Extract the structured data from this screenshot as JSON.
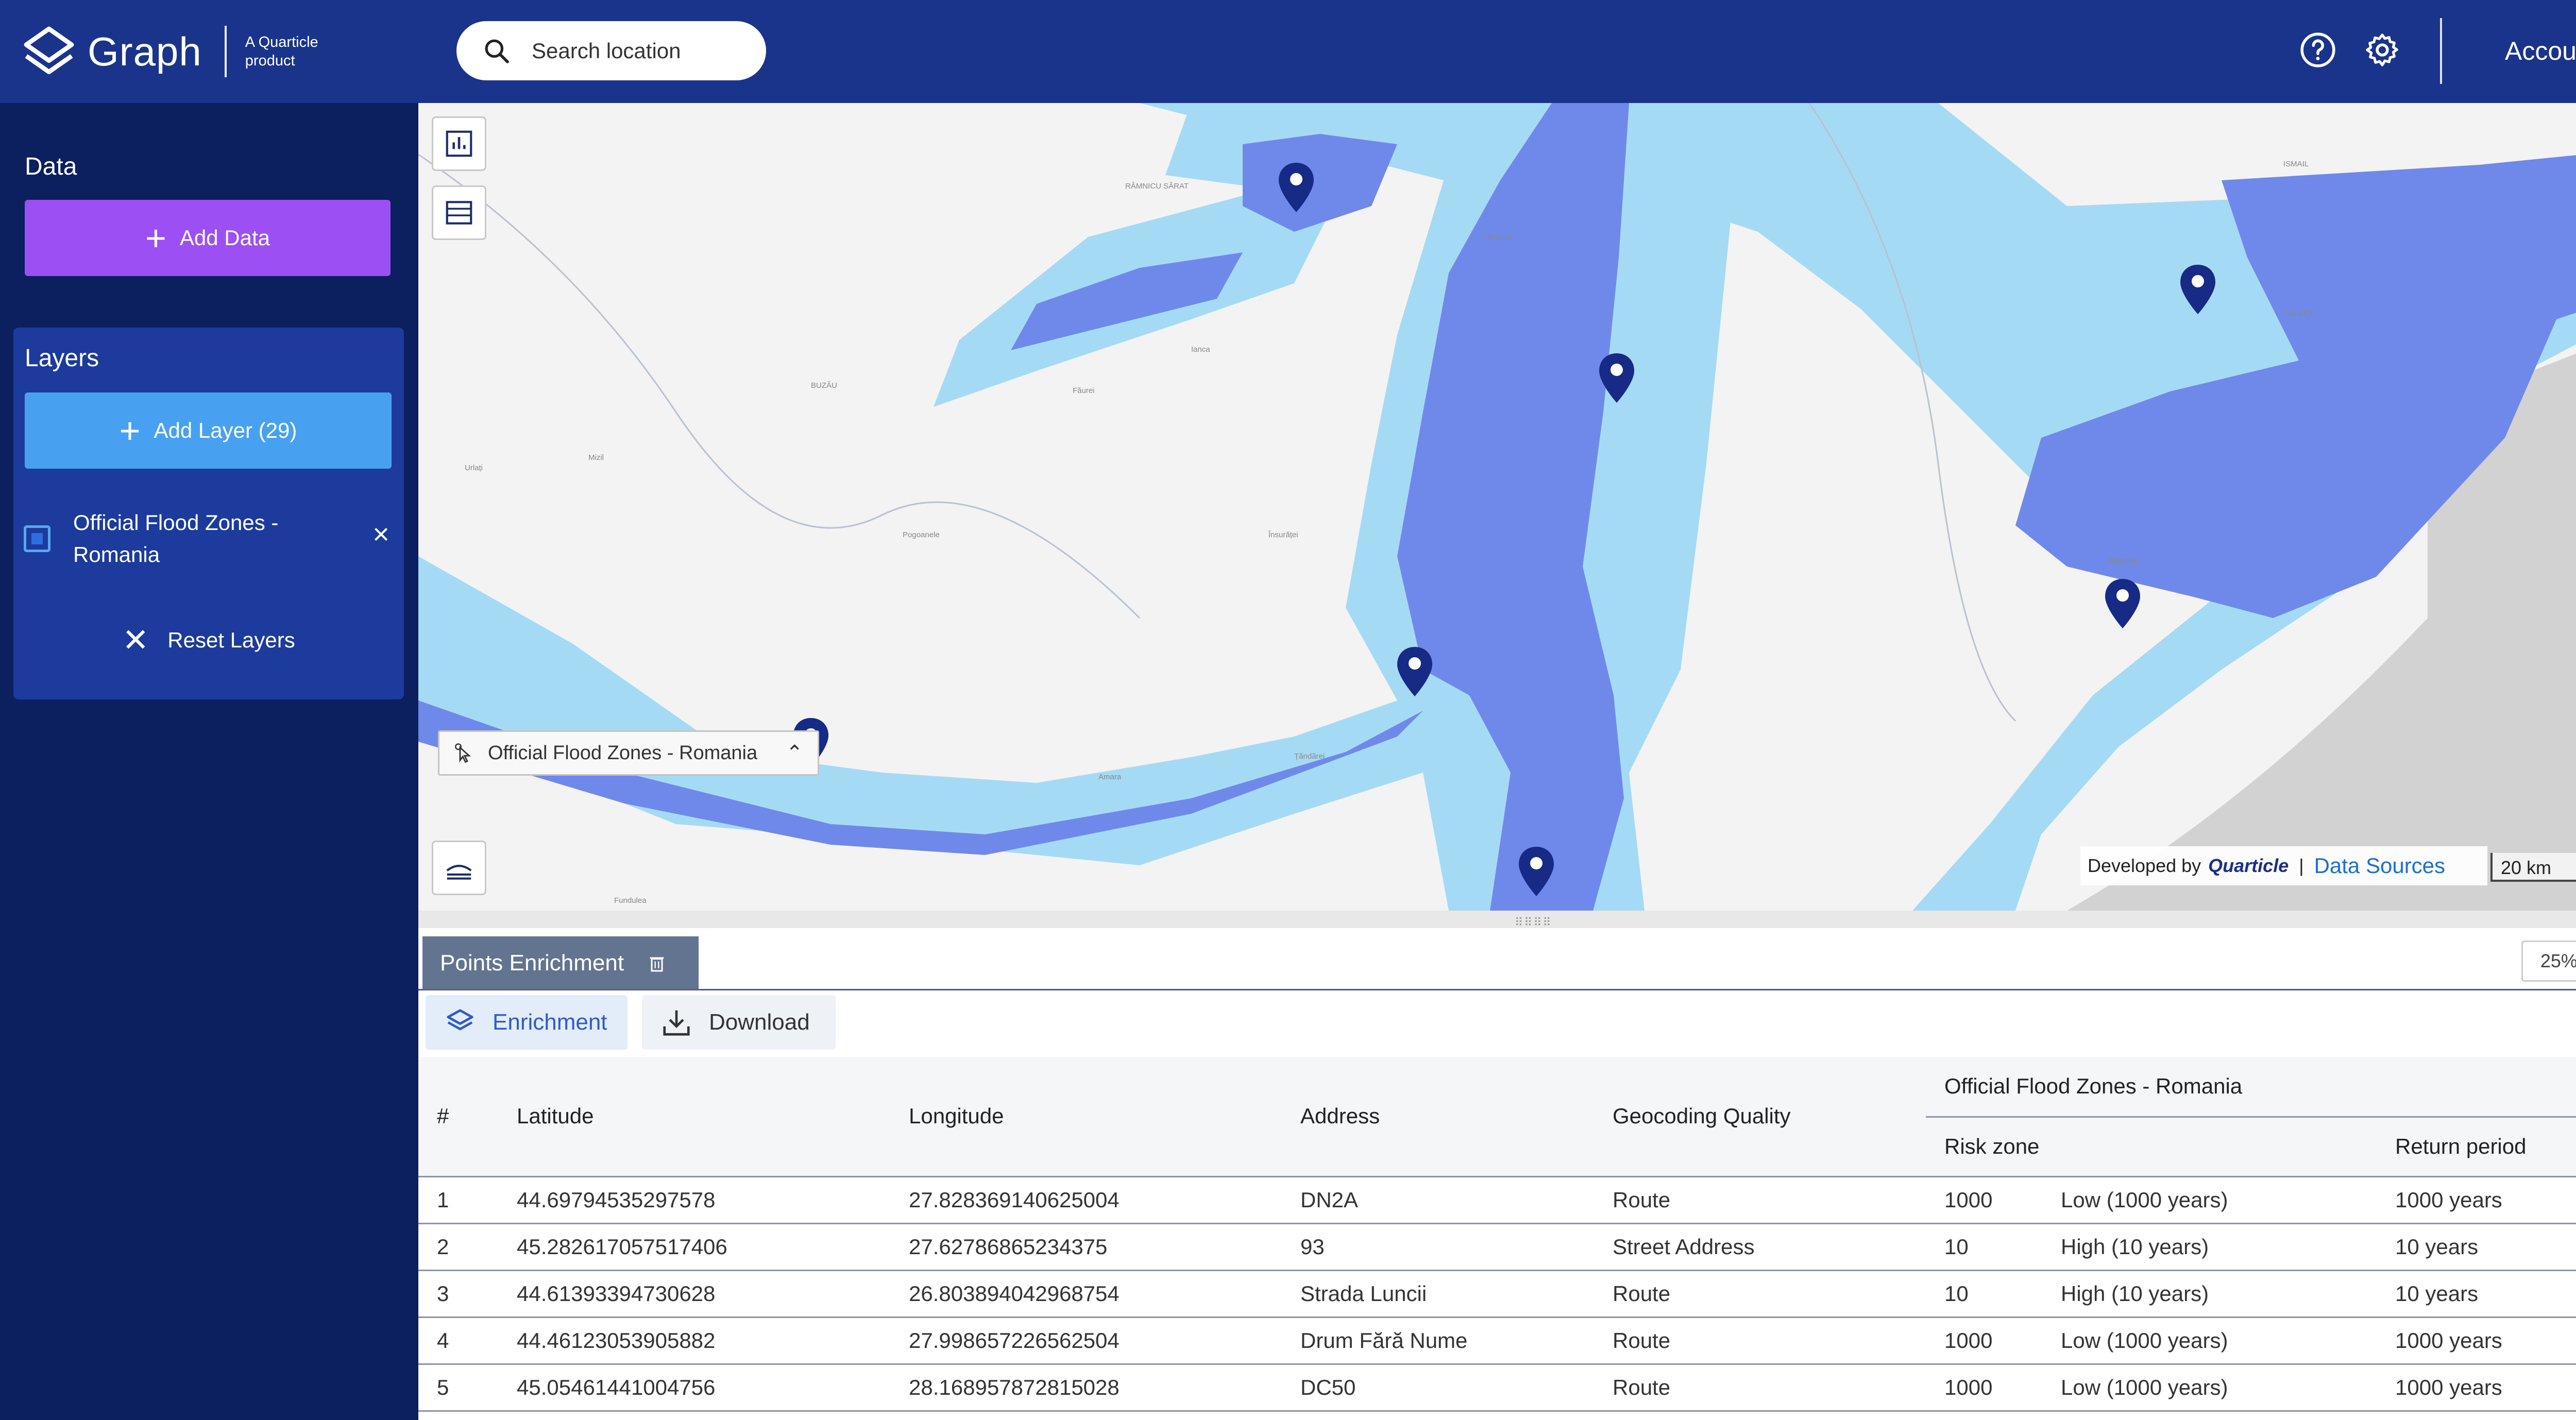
{
  "header": {
    "brand": "Graph",
    "brand_sub": "A Quarticle product",
    "search_placeholder": "Search location",
    "account_label": "Account",
    "icons": [
      "help-icon",
      "gear-icon"
    ]
  },
  "sidebar": {
    "data_heading": "Data",
    "add_data_label": "Add Data",
    "layers_heading": "Layers",
    "add_layer_label": "Add Layer (29)",
    "layers": [
      {
        "name": "Official Flood Zones - Romania",
        "checked": true
      }
    ],
    "reset_label": "Reset Layers"
  },
  "map": {
    "active_layer_chip": "Official Flood Zones - Romania",
    "attribution_prefix": "Developed by",
    "attribution_brand": "Quarticle",
    "attribution_sep": "|",
    "data_sources_label": "Data Sources",
    "scale_label": "20 km",
    "place_labels": [
      "RÂMNICU SĂRAT",
      "BRĂILA",
      "ISMAIL",
      "TULCEA",
      "BUZĂU",
      "Ianca",
      "Făurei",
      "Babadag",
      "Pogoanele",
      "Însurăței",
      "Urlați",
      "Mizil",
      "Amara",
      "Țăndărei",
      "Fundulea",
      "Slobozia"
    ],
    "left_tools": [
      "chart-icon",
      "table-icon",
      "legend-icon"
    ],
    "right_tools": [
      "zoom-in-icon",
      "zoom-out-icon",
      "add-location-icon",
      "line-chart-icon",
      "ruler-icon",
      "layers-icon",
      "eraser-icon",
      "select-area-icon",
      "anchor-icon",
      "check-tool-icon",
      "target-icon",
      "crop-icon"
    ],
    "colors": {
      "flood_light": "#a5daf5",
      "flood_dark": "#6f89ea",
      "pin": "#162a86",
      "sea": "#d2d2d2",
      "land": "#f3f3f3"
    }
  },
  "bottom_panel": {
    "tab_label": "Points Enrichment",
    "zoom_pct": "25%",
    "enrichment_label": "Enrichment",
    "download_label": "Download",
    "group_header": "Official Flood Zones - Romania",
    "columns": [
      "#",
      "Latitude",
      "Longitude",
      "Address",
      "Geocoding Quality",
      "Risk zone",
      "Return period"
    ],
    "rows": [
      {
        "n": "1",
        "lat": "44.69794535297578",
        "lon": "27.828369140625004",
        "address": "DN2A",
        "quality": "Route",
        "zone": "1000",
        "zone_desc": "Low (1000 years)",
        "period": "1000 years"
      },
      {
        "n": "2",
        "lat": "45.282617057517406",
        "lon": "27.62786865234375",
        "address": "93",
        "quality": "Street Address",
        "zone": "10",
        "zone_desc": "High (10 years)",
        "period": "10 years"
      },
      {
        "n": "3",
        "lat": "44.61393394730628",
        "lon": "26.803894042968754",
        "address": "Strada Luncii",
        "quality": "Route",
        "zone": "10",
        "zone_desc": "High (10 years)",
        "period": "10 years"
      },
      {
        "n": "4",
        "lat": "44.46123053905882",
        "lon": "27.998657226562504",
        "address": "Drum Fără Nume",
        "quality": "Route",
        "zone": "1000",
        "zone_desc": "Low (1000 years)",
        "period": "1000 years"
      },
      {
        "n": "5",
        "lat": "45.05461441004756",
        "lon": "28.168957872815028",
        "address": "DC50",
        "quality": "Route",
        "zone": "1000",
        "zone_desc": "Low (1000 years)",
        "period": "1000 years"
      }
    ]
  }
}
